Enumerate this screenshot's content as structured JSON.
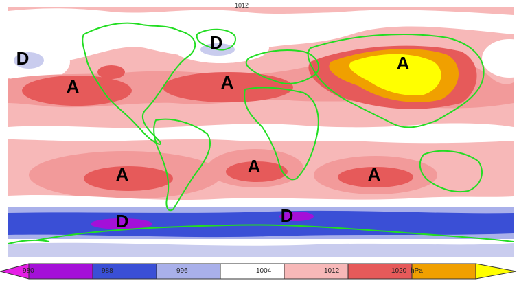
{
  "map": {
    "top_label": "1012",
    "colors": {
      "band_980_988": "#a410d8",
      "band_988_996": "#3a4fd6",
      "band_996_1004": "#a9b0ea",
      "band_1004_1012": "#ffffff",
      "band_1012_1020": "#f7b8b8",
      "band_1020_1028": "#e65a5a",
      "band_1028_1036": "#f0a000",
      "band_1036_plus": "#ffff00",
      "coastline": "#22dd22"
    },
    "pressure_centers": [
      {
        "id": "north-pacific-low",
        "label": "D",
        "kind": "low"
      },
      {
        "id": "north-atlantic-low",
        "label": "D",
        "kind": "low"
      },
      {
        "id": "north-pacific-high",
        "label": "A",
        "kind": "high"
      },
      {
        "id": "azores-high",
        "label": "A",
        "kind": "high"
      },
      {
        "id": "siberian-high",
        "label": "A",
        "kind": "high"
      },
      {
        "id": "south-pacific-high",
        "label": "A",
        "kind": "high"
      },
      {
        "id": "south-atlantic-high",
        "label": "A",
        "kind": "high"
      },
      {
        "id": "indian-ocean-high",
        "label": "A",
        "kind": "high"
      },
      {
        "id": "south-pacific-low",
        "label": "D",
        "kind": "low"
      },
      {
        "id": "south-indian-low",
        "label": "D",
        "kind": "low"
      }
    ]
  },
  "colorbar": {
    "ticks": [
      "980",
      "988",
      "996",
      "1004",
      "1012",
      "1020"
    ],
    "unit": "hPa"
  }
}
